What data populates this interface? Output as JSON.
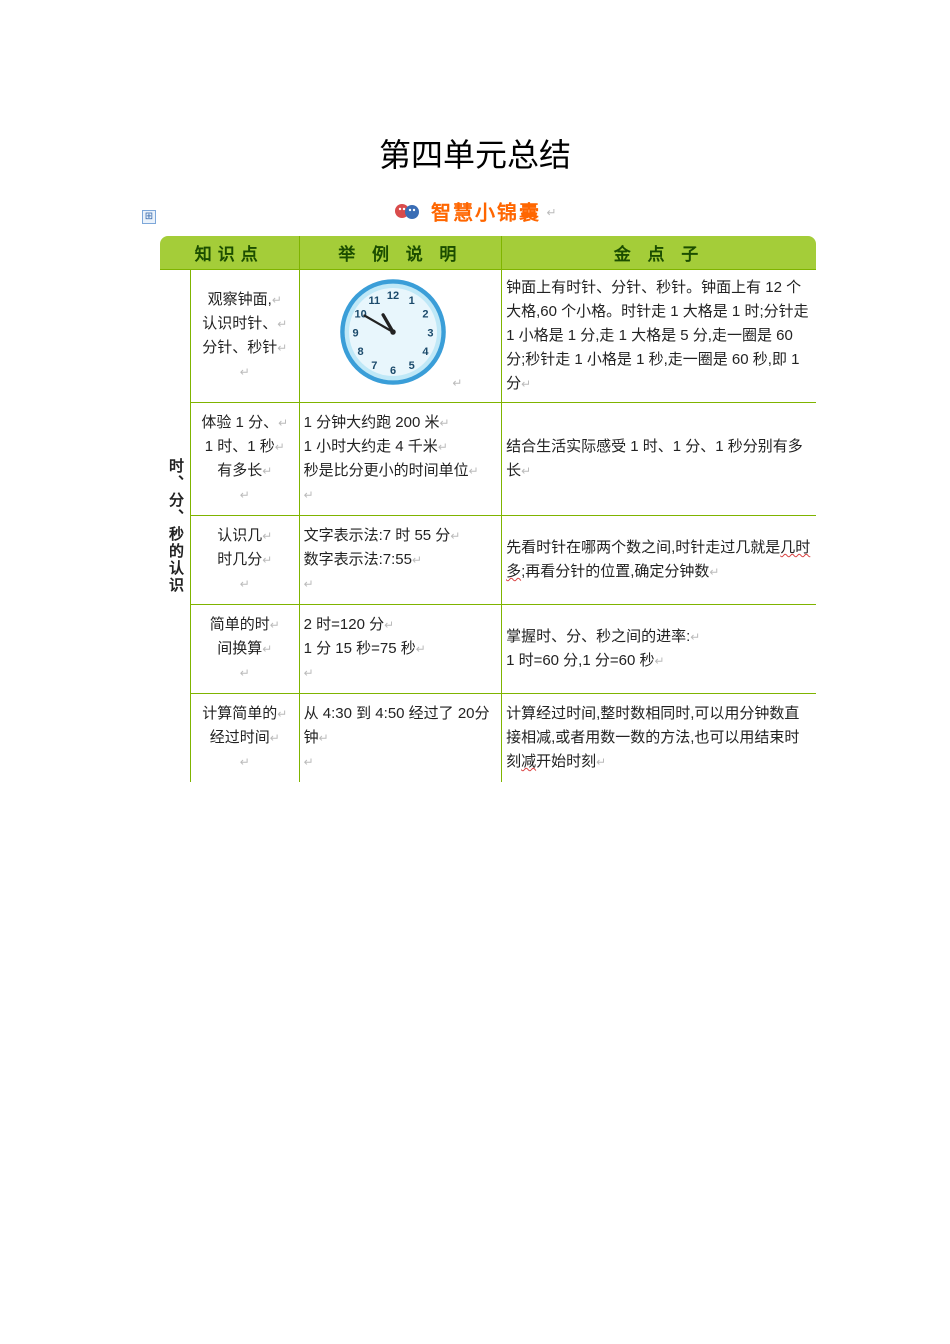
{
  "title": "第四单元总结",
  "subtitle": "智慧小锦囊",
  "headers": {
    "col1": "知识点",
    "col2": "举 例 说 明",
    "col3": "金 点 子"
  },
  "section_label": "时、分、秒的认识",
  "clock": {
    "face_color": "#bfe8f7",
    "rim_color": "#3a9ed8",
    "hand_color": "#222222",
    "num_color": "#1b4a6b",
    "hour_angle": -30,
    "minute_angle": -60
  },
  "rows": [
    {
      "kp": "观察钟面,\n认识时针、\n分针、秒针",
      "ex_type": "clock",
      "tip": "钟面上有时针、分针、秒针。钟面上有 12 个大格,60 个小格。时针走 1 大格是 1 时;分针走 1 小格是 1 分,走 1 大格是 5 分,走一圈是 60 分;秒针走 1 小格是 1 秒,走一圈是 60 秒,即 1 分"
    },
    {
      "kp": "体验 1 分、\n1 时、1 秒\n有多长",
      "ex": "1 分钟大约跑 200 米\n1 小时大约走 4 千米\n秒是比分更小的时间单位",
      "tip": "结合生活实际感受 1 时、1 分、1 秒分别有多长"
    },
    {
      "kp": "认识几\n时几分",
      "ex": "文字表示法:7 时 55 分\n数字表示法:7:55",
      "tip_html": "先看时针在哪两个数之间,时针走过几就是<span class='wavy'>几时多</span>;再看分针的位置,确定分钟数"
    },
    {
      "kp": "简单的时\n间换算",
      "ex": "2 时=120 分\n1 分 15 秒=75 秒",
      "tip": "掌握时、分、秒之间的进率:\n1 时=60 分,1 分=60 秒"
    },
    {
      "kp": "计算简单的\n经过时间",
      "ex": "从 4:30 到 4:50 经过了 20分钟",
      "tip_html": "计算经过时间,整时数相同时,可以用分钟数直接相减,或者用数一数的方法,也可以用结束时刻<span class='wavy'>减</span>开始时刻"
    }
  ],
  "colors": {
    "header_bg": "#a4cd39",
    "border": "#7fb400",
    "subtitle": "#ff6600"
  }
}
